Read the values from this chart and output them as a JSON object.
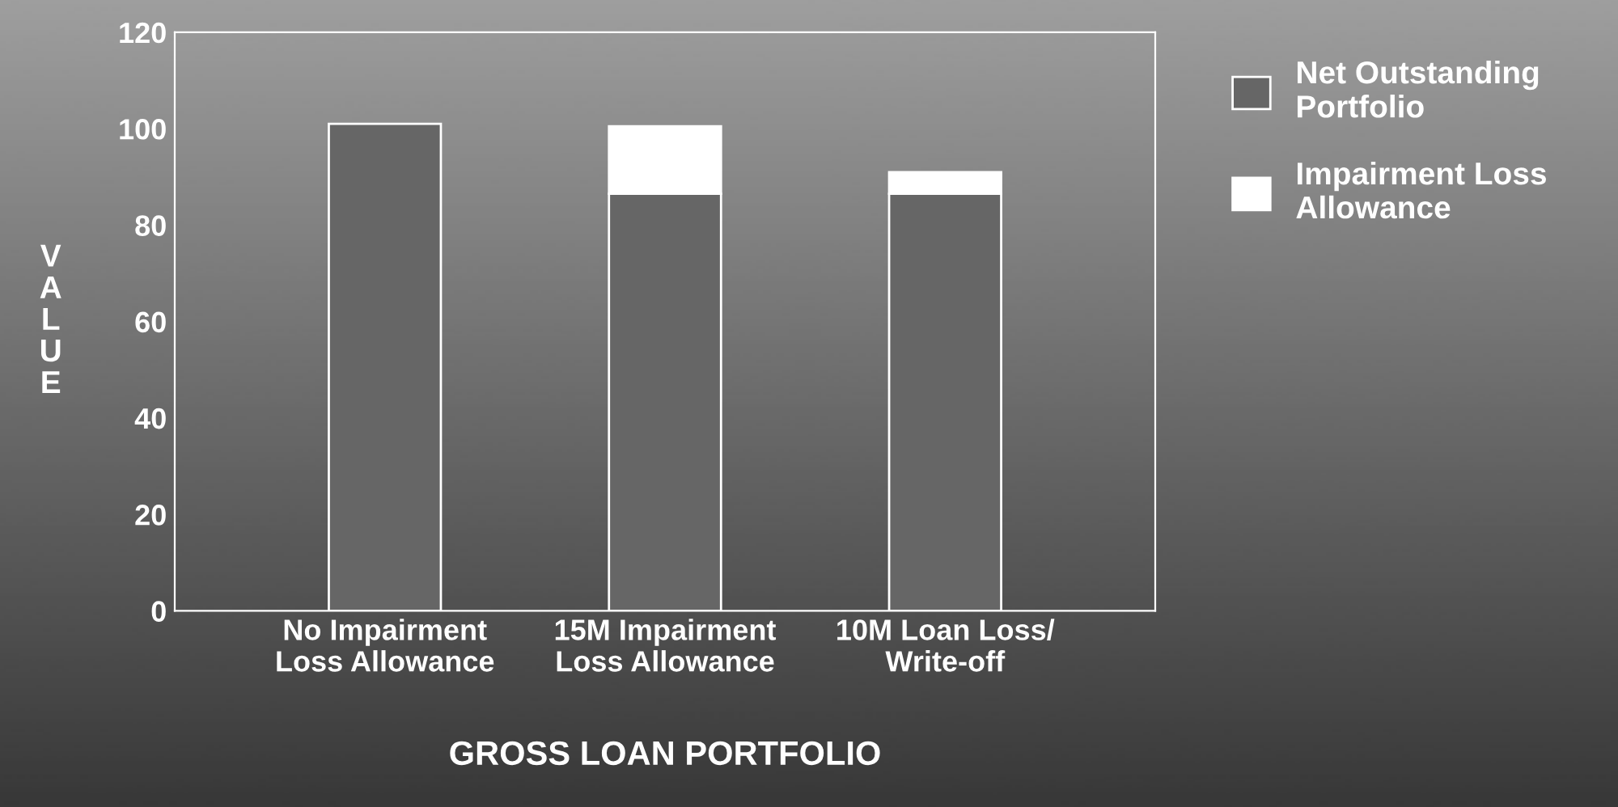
{
  "chart_data": {
    "type": "bar",
    "stacked": true,
    "xlabel": "GROSS LOAN PORTFOLIO",
    "ylabel": "VALUE",
    "categories": [
      "No Impairment\nLoss Allowance",
      "15M Impairment\nLoss Allowance",
      "10M Loan Loss/\nWrite-off"
    ],
    "series": [
      {
        "name": "Net Outstanding\nPortfolio",
        "color": "#666666",
        "values": [
          101,
          86.5,
          86.5
        ]
      },
      {
        "name": "Impairment Loss\nAllowance",
        "color": "#ffffff",
        "values": [
          null,
          14,
          4.5
        ]
      }
    ],
    "ylim": [
      0,
      120
    ],
    "yticks": [
      0,
      20,
      40,
      60,
      80,
      100,
      120
    ],
    "grid": false,
    "legend": "right"
  }
}
